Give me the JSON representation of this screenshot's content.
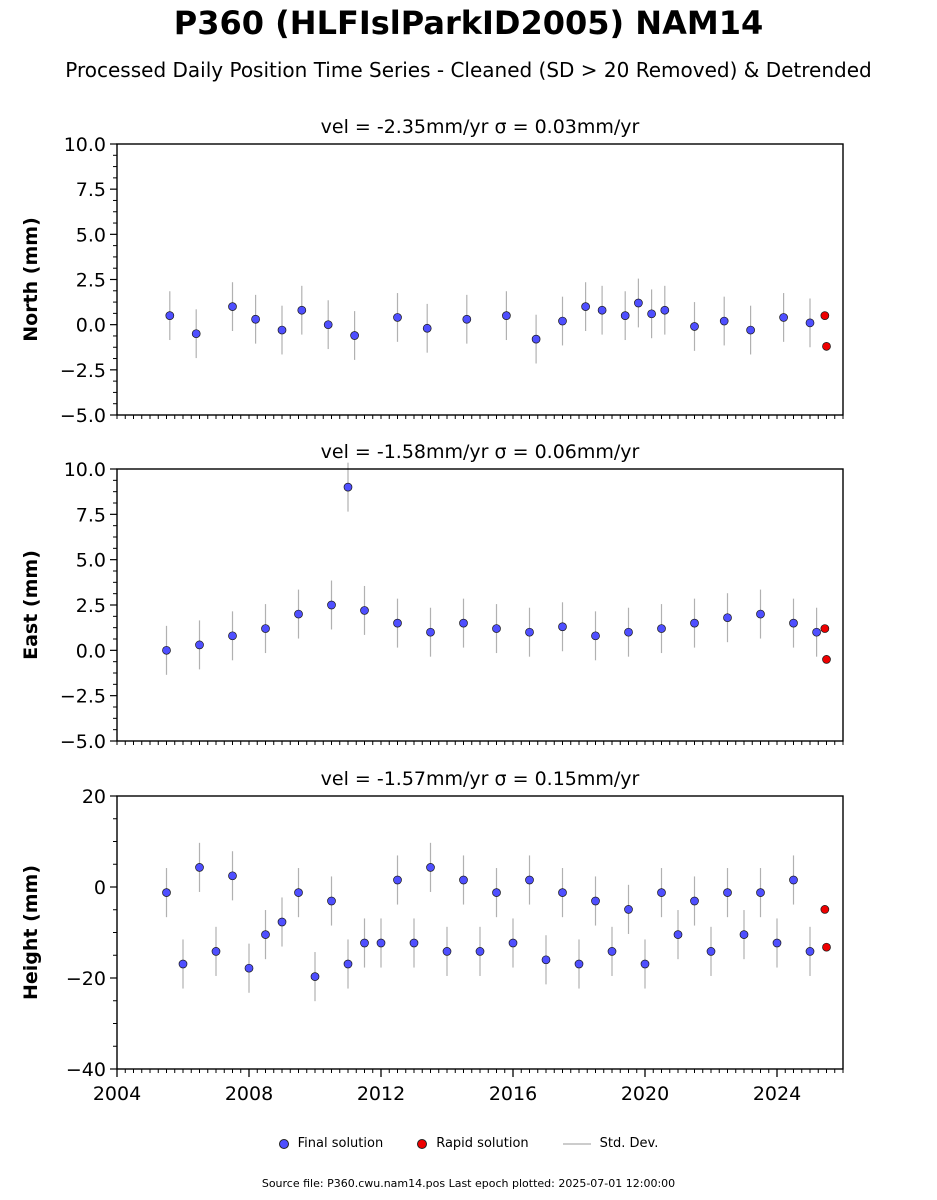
{
  "header": {
    "title": "P360 (HLFIslParkID2005) NAM14",
    "subtitle": "Processed Daily Position Time Series - Cleaned (SD > 20 Removed) & Detrended"
  },
  "legend": {
    "final_label": "Final solution",
    "rapid_label": "Rapid solution",
    "std_label": "Std. Dev."
  },
  "footer": {
    "text": "Source file: P360.cwu.nam14.pos  Last epoch plotted: 2025-07-01 12:00:00"
  },
  "colors": {
    "final": "#4f4fff",
    "rapid": "#ee0000",
    "std": "#555555"
  },
  "chart_data": [
    {
      "type": "scatter",
      "title": "vel = -2.35mm/yr   σ = 0.03mm/yr",
      "xlabel": "",
      "ylabel": "North (mm)",
      "xlim": [
        2004.0,
        2026.0
      ],
      "ylim": [
        -5,
        10
      ],
      "yticks": [
        "−5.0",
        "−2.5",
        "0.0",
        "2.5",
        "5.0",
        "7.5",
        "10.0"
      ],
      "xticks": [],
      "series": [
        {
          "x": [
            2005.6,
            2006.4,
            2007.5,
            2008.2,
            2009.0,
            2009.6,
            2010.4,
            2011.2,
            2012.5,
            2013.4,
            2014.6,
            2015.8,
            2016.7,
            2017.5,
            2018.2,
            2018.7,
            2019.4,
            2019.8,
            2020.2,
            2020.6,
            2021.5,
            2022.4,
            2023.2,
            2024.2,
            2025.0
          ],
          "values": [
            0.5,
            -0.5,
            1.0,
            0.3,
            -0.3,
            0.8,
            0.0,
            -0.6,
            0.4,
            -0.2,
            0.3,
            0.5,
            -0.8,
            0.2,
            1.0,
            0.8,
            0.5,
            1.2,
            0.6,
            0.8,
            -0.1,
            0.2,
            -0.3,
            0.4,
            0.1
          ]
        },
        {
          "x": [
            2025.45,
            2025.5
          ],
          "values": [
            0.5,
            -1.2
          ]
        }
      ]
    },
    {
      "type": "scatter",
      "title": "vel = -1.58mm/yr   σ = 0.06mm/yr",
      "xlabel": "",
      "ylabel": "East (mm)",
      "xlim": [
        2004.0,
        2026.0
      ],
      "ylim": [
        -5,
        10
      ],
      "yticks": [
        "−5.0",
        "−2.5",
        "0.0",
        "2.5",
        "5.0",
        "7.5",
        "10.0"
      ],
      "xticks": [],
      "series": [
        {
          "x": [
            2005.5,
            2006.5,
            2007.5,
            2008.5,
            2009.5,
            2010.5,
            2011.0,
            2011.5,
            2012.5,
            2013.5,
            2014.5,
            2015.5,
            2016.5,
            2017.5,
            2018.5,
            2019.5,
            2020.5,
            2021.5,
            2022.5,
            2023.5,
            2024.5,
            2025.2
          ],
          "values": [
            0.0,
            0.3,
            0.8,
            1.2,
            2.0,
            2.5,
            9.0,
            2.2,
            1.5,
            1.0,
            1.5,
            1.2,
            1.0,
            1.3,
            0.8,
            1.0,
            1.2,
            1.5,
            1.8,
            2.0,
            1.5,
            1.0
          ]
        },
        {
          "x": [
            2025.45,
            2025.5
          ],
          "values": [
            1.2,
            -0.5
          ]
        }
      ]
    },
    {
      "type": "scatter",
      "title": "vel = -1.57mm/yr   σ = 0.15mm/yr",
      "xlabel": "",
      "ylabel": "Height (mm)",
      "xlim": [
        2004.0,
        2026.0
      ],
      "ylim": [
        -40,
        25
      ],
      "yticks": [
        "−40",
        "−20",
        "0",
        "20"
      ],
      "xticks": [
        "2004",
        "2008",
        "2012",
        "2016",
        "2020",
        "2024"
      ],
      "series": [
        {
          "x": [
            2005.5,
            2006.0,
            2006.5,
            2007.0,
            2007.5,
            2008.0,
            2008.5,
            2009.0,
            2009.5,
            2010.0,
            2010.5,
            2011.0,
            2011.5,
            2012.0,
            2012.5,
            2013.0,
            2013.5,
            2014.0,
            2014.5,
            2015.0,
            2015.5,
            2016.0,
            2016.5,
            2017.0,
            2017.5,
            2018.0,
            2018.5,
            2019.0,
            2019.5,
            2020.0,
            2020.5,
            2021.0,
            2021.5,
            2022.0,
            2022.5,
            2023.0,
            2023.5,
            2024.0,
            2024.5,
            2025.0
          ],
          "values": [
            2,
            -15,
            8,
            -12,
            6,
            -16,
            -8,
            -5,
            2,
            -18,
            0,
            -15,
            -10,
            -10,
            5,
            -10,
            8,
            -12,
            5,
            -12,
            2,
            -10,
            5,
            -14,
            2,
            -15,
            0,
            -12,
            -2,
            -15,
            2,
            -8,
            0,
            -12,
            2,
            -8,
            2,
            -10,
            5,
            -12
          ]
        },
        {
          "x": [
            2025.45,
            2025.5
          ],
          "values": [
            -2,
            -11
          ]
        }
      ]
    }
  ]
}
